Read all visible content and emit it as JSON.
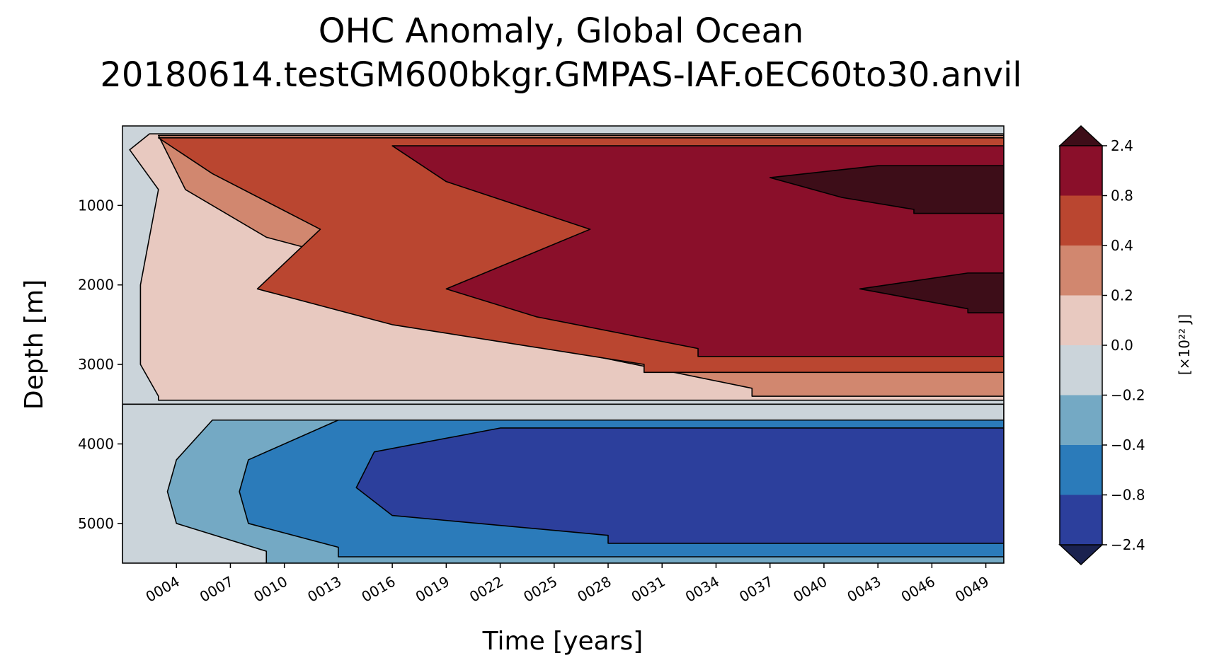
{
  "chart_data": {
    "type": "heatmap",
    "title_lines": [
      "OHC Anomaly, Global Ocean",
      "20180614.testGM600bkgr.GMPAS-IAF.oEC60to30.anvil"
    ],
    "xlabel": "Time [years]",
    "ylabel": "Depth [m]",
    "x_range": [
      1,
      50
    ],
    "y_range": [
      0,
      5500
    ],
    "y_inverted": true,
    "x_ticks": [
      {
        "value": 4,
        "label": "0004"
      },
      {
        "value": 7,
        "label": "0007"
      },
      {
        "value": 10,
        "label": "0010"
      },
      {
        "value": 13,
        "label": "0013"
      },
      {
        "value": 16,
        "label": "0016"
      },
      {
        "value": 19,
        "label": "0019"
      },
      {
        "value": 22,
        "label": "0022"
      },
      {
        "value": 25,
        "label": "0025"
      },
      {
        "value": 28,
        "label": "0028"
      },
      {
        "value": 31,
        "label": "0031"
      },
      {
        "value": 34,
        "label": "0034"
      },
      {
        "value": 37,
        "label": "0037"
      },
      {
        "value": 40,
        "label": "0040"
      },
      {
        "value": 43,
        "label": "0043"
      },
      {
        "value": 46,
        "label": "0046"
      },
      {
        "value": 49,
        "label": "0049"
      }
    ],
    "y_ticks": [
      {
        "value": 1000,
        "label": "1000"
      },
      {
        "value": 2000,
        "label": "2000"
      },
      {
        "value": 3000,
        "label": "3000"
      },
      {
        "value": 4000,
        "label": "4000"
      },
      {
        "value": 5000,
        "label": "5000"
      }
    ],
    "colorbar": {
      "label": "[×10²² J]",
      "levels": [
        "−2.4",
        "−0.8",
        "−0.4",
        "−0.2",
        "0.0",
        "0.2",
        "0.4",
        "0.8",
        "2.4"
      ],
      "colors": [
        "#2c3f9c",
        "#2b7bba",
        "#74a9c4",
        "#cbd4da",
        "#e8c9c0",
        "#d1876f",
        "#ba4630",
        "#8a0f2a"
      ],
      "under_color": "#1a224f",
      "over_color": "#3d0d18",
      "extend": "both"
    },
    "background_color": "#cbd4da",
    "regions": [
      {
        "name": "warm-0.0-0.2",
        "color": "#e8c9c0",
        "x_start": [
          2.5,
          1.4,
          3.0,
          2.0,
          2.0,
          3.0
        ],
        "x_end": 50,
        "depth_top": [
          100,
          300,
          800,
          2000,
          3000,
          3400
        ],
        "depth_bottom": 3450
      },
      {
        "name": "warm-0.2-0.4",
        "color": "#d1876f",
        "x_start": [
          3.0,
          4.5,
          9.0,
          19.0,
          23.0,
          36.0
        ],
        "x_end": 50,
        "depth_top": [
          120,
          800,
          1400,
          2000,
          2700,
          3300
        ],
        "depth_bottom": 3400
      },
      {
        "name": "warm-0.4-0.8",
        "color": "#ba4630",
        "x_start": [
          3.0,
          6.0,
          12.0,
          8.5,
          16.0,
          30.0
        ],
        "x_end": 50,
        "depth_top": [
          150,
          600,
          1300,
          2050,
          2500,
          3000
        ],
        "depth_bottom": 3100
      },
      {
        "name": "warm-0.8-2.4",
        "color": "#8a0f2a",
        "x_start": [
          16.0,
          19.0,
          27.0,
          19.0,
          24.0,
          33.0
        ],
        "x_end": 50,
        "depth_top": [
          250,
          700,
          1300,
          2050,
          2400,
          2800
        ],
        "depth_bottom": 2900
      },
      {
        "name": "warm-over-2.4-upper",
        "color": "#3d0d18",
        "x_start": [
          43.0,
          37.0,
          41.0,
          45.0
        ],
        "x_end": 50,
        "depth_top": [
          500,
          650,
          900,
          1050
        ],
        "depth_bottom": 1100
      },
      {
        "name": "warm-over-2.4-lower",
        "color": "#3d0d18",
        "x_start": [
          48.0,
          42.0,
          48.0
        ],
        "x_end": 50,
        "depth_top": [
          1850,
          2050,
          2300
        ],
        "depth_bottom": 2350
      },
      {
        "name": "cold-0.0-0.2",
        "color": "#cbd4da",
        "x_start": [
          1.0
        ],
        "x_end": 50,
        "depth_top": [
          3500
        ],
        "depth_bottom": 5500
      },
      {
        "name": "cold-0.2-0.4",
        "color": "#74a9c4",
        "x_start": [
          6.0,
          4.0,
          3.5,
          4.0,
          9.0
        ],
        "x_end": 50,
        "depth_top": [
          3700,
          4200,
          4600,
          5000,
          5350
        ],
        "depth_bottom": 5500
      },
      {
        "name": "cold-0.4-0.8",
        "color": "#2b7bba",
        "x_start": [
          13.0,
          8.0,
          7.5,
          8.0,
          13.0
        ],
        "x_end": 50,
        "depth_top": [
          3700,
          4200,
          4600,
          5000,
          5300
        ],
        "depth_bottom": 5420
      },
      {
        "name": "cold-0.8-2.4",
        "color": "#2c3f9c",
        "x_start": [
          22.0,
          15.0,
          14.0,
          16.0,
          28.0
        ],
        "x_end": 50,
        "depth_top": [
          3800,
          4100,
          4550,
          4900,
          5150
        ],
        "depth_bottom": 5250
      }
    ]
  }
}
